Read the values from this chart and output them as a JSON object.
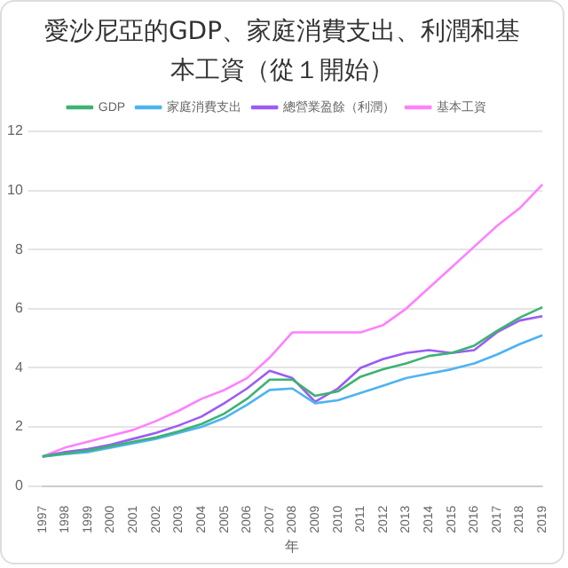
{
  "chart_data": {
    "type": "line",
    "title": "愛沙尼亞的GDP、家庭消費支出、利潤和基本工資（從１開始）",
    "xlabel": "年",
    "categories": [
      "1997",
      "1998",
      "1999",
      "2000",
      "2001",
      "2002",
      "2003",
      "2004",
      "2005",
      "2006",
      "2007",
      "2008",
      "2009",
      "2010",
      "2011",
      "2012",
      "2013",
      "2014",
      "2015",
      "2016",
      "2017",
      "2018",
      "2019"
    ],
    "series": [
      {
        "name": "GDP",
        "color": "#3cb371",
        "values": [
          1.0,
          1.1,
          1.2,
          1.35,
          1.5,
          1.65,
          1.85,
          2.1,
          2.45,
          2.95,
          3.6,
          3.6,
          3.05,
          3.2,
          3.7,
          3.95,
          4.15,
          4.4,
          4.5,
          4.75,
          5.25,
          5.7,
          6.05
        ]
      },
      {
        "name": "家庭消費支出",
        "color": "#4fb3f0",
        "values": [
          1.0,
          1.08,
          1.15,
          1.3,
          1.45,
          1.6,
          1.8,
          2.0,
          2.3,
          2.75,
          3.25,
          3.3,
          2.8,
          2.9,
          3.15,
          3.4,
          3.65,
          3.8,
          3.95,
          4.15,
          4.45,
          4.8,
          5.1
        ]
      },
      {
        "name": "總營業盈餘（利潤）",
        "color": "#9b5cf5",
        "values": [
          1.0,
          1.15,
          1.25,
          1.4,
          1.6,
          1.8,
          2.05,
          2.35,
          2.8,
          3.3,
          3.9,
          3.65,
          2.85,
          3.3,
          4.0,
          4.3,
          4.5,
          4.6,
          4.5,
          4.6,
          5.2,
          5.6,
          5.75
        ]
      },
      {
        "name": "基本工資",
        "color": "#ff80ff",
        "values": [
          1.0,
          1.3,
          1.5,
          1.7,
          1.9,
          2.2,
          2.55,
          2.95,
          3.25,
          3.65,
          4.35,
          5.2,
          5.2,
          5.2,
          5.2,
          5.45,
          6.0,
          6.7,
          7.4,
          8.1,
          8.8,
          9.4,
          10.2
        ]
      }
    ],
    "ylim": [
      0,
      12
    ],
    "yticks": [
      0,
      2,
      4,
      6,
      8,
      10,
      12
    ],
    "grid": "y",
    "legend": "top",
    "marker": "none",
    "line_style": "solid"
  }
}
